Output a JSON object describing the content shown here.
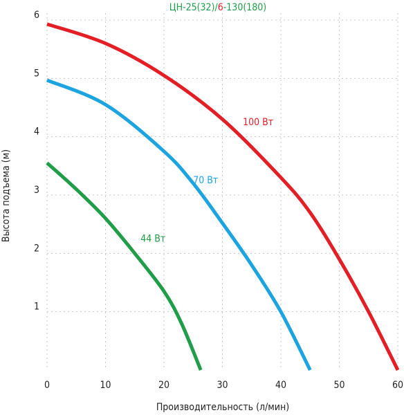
{
  "chart_data": {
    "type": "line",
    "title_parts": [
      {
        "text": "ЦН-25(32)/",
        "color": "#1f9d48"
      },
      {
        "text": "6",
        "color": "#e31e24"
      },
      {
        "text": "-130(180)",
        "color": "#1f9d48"
      }
    ],
    "xlabel": "Производительность (л/мин)",
    "ylabel": "Высота подъема (м)",
    "xlim": [
      0,
      60
    ],
    "ylim": [
      0,
      6
    ],
    "xticks": [
      "0",
      "10",
      "20",
      "30",
      "40",
      "50",
      "60"
    ],
    "yticks": [
      "1",
      "2",
      "3",
      "4",
      "5",
      "6"
    ],
    "grid": true,
    "series": [
      {
        "name": "100 Вт",
        "color": "#e31e24",
        "label_at": [
          33.5,
          4.2
        ],
        "points": [
          [
            0,
            5.93
          ],
          [
            10,
            5.6
          ],
          [
            20,
            5.05
          ],
          [
            30,
            4.3
          ],
          [
            40,
            3.3
          ],
          [
            45,
            2.7
          ],
          [
            50,
            1.9
          ],
          [
            55,
            1.0
          ],
          [
            60,
            0.0
          ]
        ]
      },
      {
        "name": "70 Вт",
        "color": "#1ca4e0",
        "label_at": [
          25,
          3.2
        ],
        "points": [
          [
            0,
            4.97
          ],
          [
            10,
            4.55
          ],
          [
            20,
            3.75
          ],
          [
            25,
            3.2
          ],
          [
            30,
            2.52
          ],
          [
            35,
            1.8
          ],
          [
            40,
            1.0
          ],
          [
            45,
            0.0
          ]
        ]
      },
      {
        "name": "44 Вт",
        "color": "#1f9d48",
        "label_at": [
          16,
          2.2
        ],
        "points": [
          [
            0,
            3.55
          ],
          [
            5,
            3.1
          ],
          [
            10,
            2.6
          ],
          [
            15,
            2.0
          ],
          [
            20,
            1.35
          ],
          [
            23,
            0.8
          ],
          [
            26.3,
            0.0
          ]
        ]
      }
    ]
  }
}
